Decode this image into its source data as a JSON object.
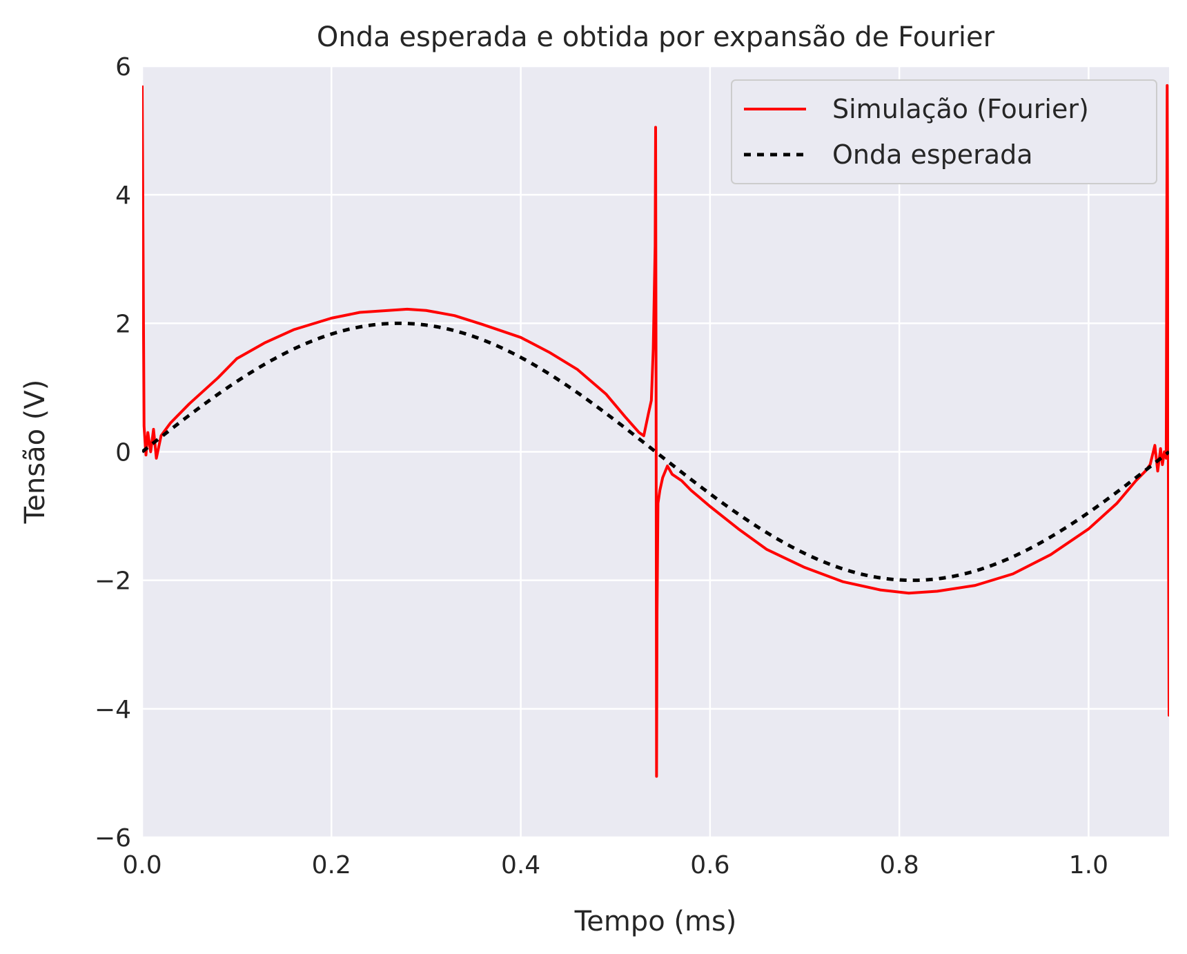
{
  "chart_data": {
    "type": "line",
    "title": "Onda esperada e obtida por expansão de Fourier",
    "xlabel": "Tempo (ms)",
    "ylabel": "Tensão (V)",
    "xlim": [
      0,
      1.085
    ],
    "ylim": [
      -6,
      6
    ],
    "xticks": [
      0.0,
      0.2,
      0.4,
      0.6,
      0.8,
      1.0
    ],
    "xtick_labels": [
      "0.0",
      "0.2",
      "0.4",
      "0.6",
      "0.8",
      "1.0"
    ],
    "yticks": [
      -6,
      -4,
      -2,
      0,
      2,
      4,
      6
    ],
    "ytick_labels": [
      "−6",
      "−4",
      "−2",
      "0",
      "2",
      "4",
      "6"
    ],
    "grid": true,
    "legend_position": "top-right",
    "background_color": "#eaeaf2",
    "series": [
      {
        "name": "Simulação (Fourier)",
        "color": "#ff0000",
        "style": "solid",
        "x": [
          0.0,
          0.002,
          0.004,
          0.006,
          0.009,
          0.012,
          0.015,
          0.02,
          0.03,
          0.05,
          0.08,
          0.1,
          0.13,
          0.16,
          0.2,
          0.23,
          0.26,
          0.28,
          0.3,
          0.33,
          0.36,
          0.4,
          0.43,
          0.46,
          0.49,
          0.51,
          0.525,
          0.53,
          0.535,
          0.538,
          0.54,
          0.542,
          0.5425,
          0.543,
          0.5435,
          0.544,
          0.545,
          0.547,
          0.55,
          0.555,
          0.56,
          0.57,
          0.58,
          0.6,
          0.63,
          0.66,
          0.7,
          0.74,
          0.78,
          0.81,
          0.84,
          0.88,
          0.92,
          0.96,
          1.0,
          1.03,
          1.05,
          1.06,
          1.065,
          1.07,
          1.073,
          1.076,
          1.078,
          1.08,
          1.082,
          1.083,
          1.084,
          1.085,
          1.0855
        ],
        "y": [
          5.7,
          0.4,
          -0.05,
          0.3,
          0.0,
          0.35,
          -0.1,
          0.25,
          0.45,
          0.75,
          1.15,
          1.45,
          1.7,
          1.9,
          2.08,
          2.17,
          2.2,
          2.22,
          2.2,
          2.12,
          1.98,
          1.78,
          1.55,
          1.28,
          0.9,
          0.55,
          0.3,
          0.25,
          0.6,
          0.8,
          1.6,
          3.2,
          5.05,
          1.0,
          -5.05,
          -2.5,
          -0.8,
          -0.6,
          -0.4,
          -0.22,
          -0.35,
          -0.45,
          -0.6,
          -0.85,
          -1.2,
          -1.52,
          -1.8,
          -2.02,
          -2.15,
          -2.2,
          -2.17,
          -2.08,
          -1.9,
          -1.6,
          -1.2,
          -0.8,
          -0.45,
          -0.3,
          -0.2,
          0.1,
          -0.3,
          0.05,
          -0.2,
          0.0,
          -0.1,
          5.7,
          1.0,
          -4.1,
          -4.1
        ]
      },
      {
        "name": "Onda esperada",
        "color": "#000000",
        "style": "dashed",
        "amplitude": 2,
        "period": 1.085,
        "x_start": 0,
        "x_end": 1.085
      }
    ]
  }
}
